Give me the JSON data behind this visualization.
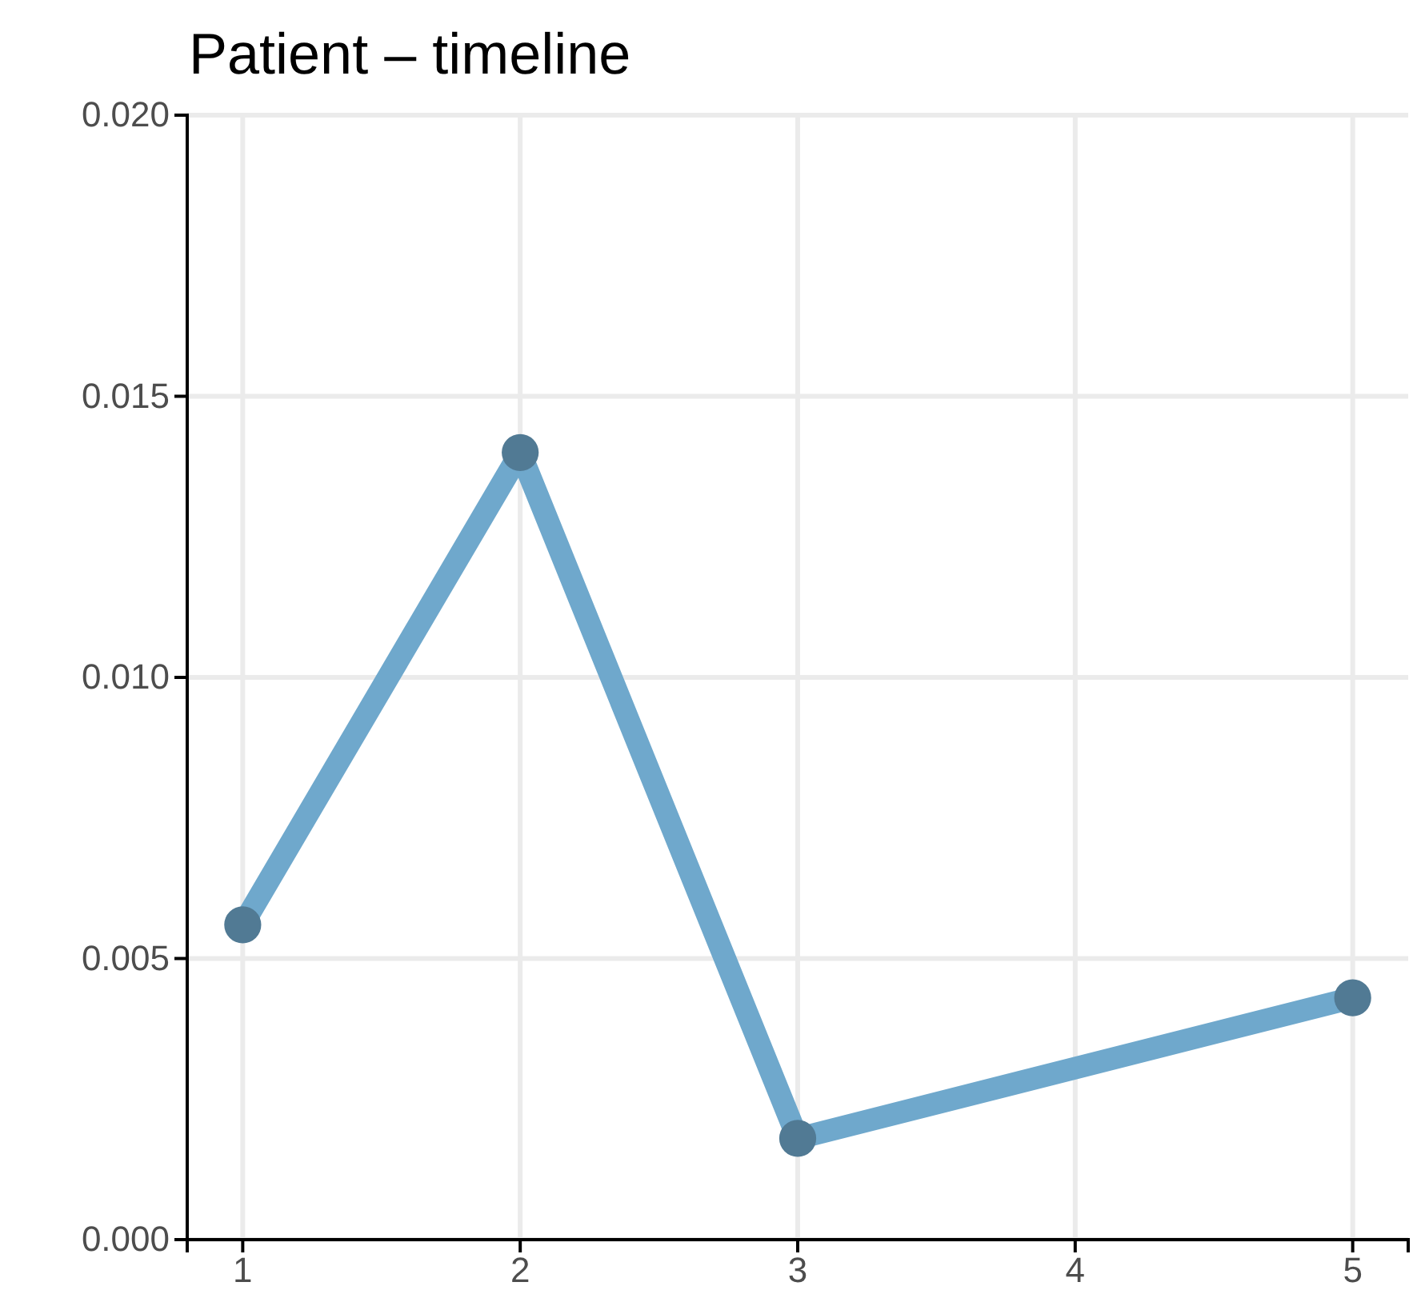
{
  "chart_data": {
    "type": "line",
    "title": "Patient – timeline",
    "x": [
      1,
      2,
      3,
      5
    ],
    "series": [
      {
        "color": "#6fa8cc",
        "values": [
          0.0056,
          0.014,
          0.0018,
          0.0043
        ]
      }
    ],
    "xlim": [
      0.8,
      5.2
    ],
    "xticks": [
      1,
      2,
      3,
      4,
      5
    ],
    "ylim": [
      0,
      0.02
    ],
    "yticks": [
      {
        "value": 0,
        "label": "0.000"
      },
      {
        "value": 0.005,
        "label": "0.005"
      },
      {
        "value": 0.01,
        "label": "0.010"
      },
      {
        "value": 0.015,
        "label": "0.015"
      },
      {
        "value": 0.02,
        "label": "0.020"
      }
    ],
    "grid": true,
    "marker": "circle",
    "line_style": "solid"
  }
}
